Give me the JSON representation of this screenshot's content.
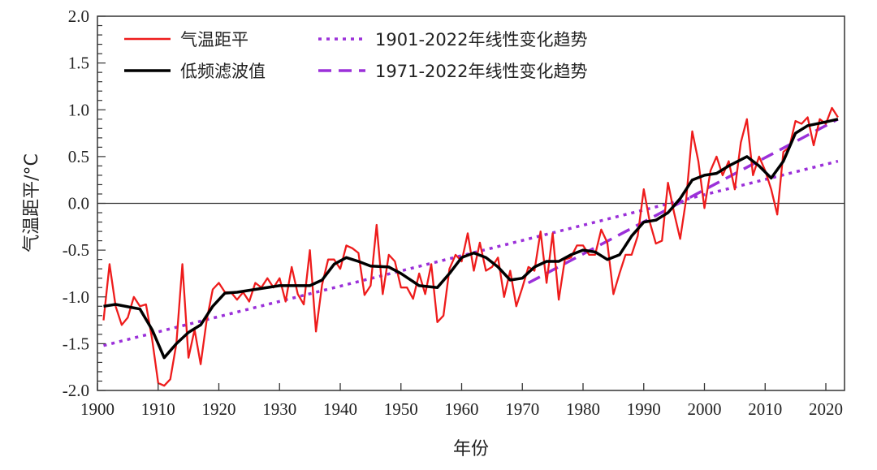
{
  "chart_data": {
    "type": "line",
    "xlabel": "年份",
    "ylabel": "气温距平/°C",
    "xlim": [
      1900,
      2023
    ],
    "ylim": [
      -2.0,
      2.0
    ],
    "xticks": [
      "1900",
      "1910",
      "1920",
      "1930",
      "1940",
      "1950",
      "1960",
      "1970",
      "1980",
      "1990",
      "2000",
      "2010",
      "2020"
    ],
    "yticks": [
      "2.0",
      "1.5",
      "1.0",
      "0.5",
      "0.0",
      "-0.5",
      "-1.0",
      "-1.5",
      "-2.0"
    ],
    "grid": false,
    "zero_line": true,
    "legend_placement": "top",
    "series": [
      {
        "name": "气温距平",
        "color": "#ee1c1c",
        "style": "solid",
        "x": [
          1901,
          1902,
          1903,
          1904,
          1905,
          1906,
          1907,
          1908,
          1909,
          1910,
          1911,
          1912,
          1913,
          1914,
          1915,
          1916,
          1917,
          1918,
          1919,
          1920,
          1921,
          1922,
          1923,
          1924,
          1925,
          1926,
          1927,
          1928,
          1929,
          1930,
          1931,
          1932,
          1933,
          1934,
          1935,
          1936,
          1937,
          1938,
          1939,
          1940,
          1941,
          1942,
          1943,
          1944,
          1945,
          1946,
          1947,
          1948,
          1949,
          1950,
          1951,
          1952,
          1953,
          1954,
          1955,
          1956,
          1957,
          1958,
          1959,
          1960,
          1961,
          1962,
          1963,
          1964,
          1965,
          1966,
          1967,
          1968,
          1969,
          1970,
          1971,
          1972,
          1973,
          1974,
          1975,
          1976,
          1977,
          1978,
          1979,
          1980,
          1981,
          1982,
          1983,
          1984,
          1985,
          1986,
          1987,
          1988,
          1989,
          1990,
          1991,
          1992,
          1993,
          1994,
          1995,
          1996,
          1997,
          1998,
          1999,
          2000,
          2001,
          2002,
          2003,
          2004,
          2005,
          2006,
          2007,
          2008,
          2009,
          2010,
          2011,
          2012,
          2013,
          2014,
          2015,
          2016,
          2017,
          2018,
          2019,
          2020,
          2021,
          2022
        ],
        "y": [
          -1.25,
          -0.65,
          -1.1,
          -1.3,
          -1.22,
          -1.0,
          -1.1,
          -1.08,
          -1.45,
          -1.92,
          -1.95,
          -1.88,
          -1.5,
          -0.65,
          -1.65,
          -1.35,
          -1.72,
          -1.25,
          -0.92,
          -0.85,
          -0.95,
          -0.95,
          -1.03,
          -0.95,
          -1.05,
          -0.85,
          -0.9,
          -0.8,
          -0.9,
          -0.8,
          -1.05,
          -0.68,
          -0.97,
          -1.08,
          -0.5,
          -1.37,
          -0.87,
          -0.6,
          -0.6,
          -0.7,
          -0.45,
          -0.48,
          -0.53,
          -0.98,
          -0.88,
          -0.23,
          -0.97,
          -0.55,
          -0.62,
          -0.9,
          -0.9,
          -1.02,
          -0.75,
          -0.97,
          -0.65,
          -1.27,
          -1.2,
          -0.7,
          -0.55,
          -0.62,
          -0.32,
          -0.72,
          -0.42,
          -0.72,
          -0.68,
          -0.58,
          -1.0,
          -0.72,
          -1.1,
          -0.9,
          -0.68,
          -0.72,
          -0.3,
          -0.85,
          -0.32,
          -1.03,
          -0.6,
          -0.58,
          -0.45,
          -0.45,
          -0.55,
          -0.55,
          -0.28,
          -0.42,
          -0.97,
          -0.75,
          -0.55,
          -0.55,
          -0.35,
          0.15,
          -0.2,
          -0.43,
          -0.4,
          0.22,
          -0.1,
          -0.38,
          0.05,
          0.77,
          0.45,
          -0.05,
          0.35,
          0.5,
          0.3,
          0.45,
          0.15,
          0.65,
          0.9,
          0.3,
          0.5,
          0.35,
          0.15,
          -0.12,
          0.55,
          0.6,
          0.88,
          0.85,
          0.92,
          0.62,
          0.9,
          0.85,
          1.02,
          0.92
        ]
      },
      {
        "name": "低频滤波值",
        "color": "#000000",
        "style": "solid",
        "x": [
          1901,
          1903,
          1907,
          1909,
          1911,
          1913,
          1915,
          1917,
          1919,
          1921,
          1923,
          1926,
          1930,
          1935,
          1937,
          1939,
          1941,
          1943,
          1945,
          1948,
          1950,
          1953,
          1956,
          1958,
          1960,
          1962,
          1964,
          1966,
          1968,
          1970,
          1972,
          1974,
          1976,
          1978,
          1980,
          1982,
          1984,
          1986,
          1988,
          1990,
          1992,
          1994,
          1996,
          1998,
          2000,
          2002,
          2004,
          2007,
          2009,
          2011,
          2013,
          2015,
          2017,
          2020,
          2022
        ],
        "y": [
          -1.1,
          -1.08,
          -1.13,
          -1.35,
          -1.65,
          -1.5,
          -1.38,
          -1.3,
          -1.1,
          -0.96,
          -0.95,
          -0.92,
          -0.88,
          -0.88,
          -0.82,
          -0.65,
          -0.58,
          -0.62,
          -0.67,
          -0.68,
          -0.75,
          -0.88,
          -0.9,
          -0.75,
          -0.58,
          -0.53,
          -0.58,
          -0.68,
          -0.82,
          -0.8,
          -0.68,
          -0.62,
          -0.62,
          -0.55,
          -0.5,
          -0.52,
          -0.6,
          -0.55,
          -0.35,
          -0.2,
          -0.18,
          -0.1,
          0.05,
          0.25,
          0.3,
          0.32,
          0.4,
          0.5,
          0.4,
          0.27,
          0.45,
          0.75,
          0.83,
          0.87,
          0.9
        ]
      },
      {
        "name": "1901-2022年线性变化趋势",
        "color": "#9b30d9",
        "style": "dotted",
        "x": [
          1901,
          2022
        ],
        "y": [
          -1.52,
          0.45
        ]
      },
      {
        "name": "1971-2022年线性变化趋势",
        "color": "#9b30d9",
        "style": "dashed",
        "x": [
          1971,
          2022
        ],
        "y": [
          -0.85,
          0.9
        ]
      }
    ]
  }
}
